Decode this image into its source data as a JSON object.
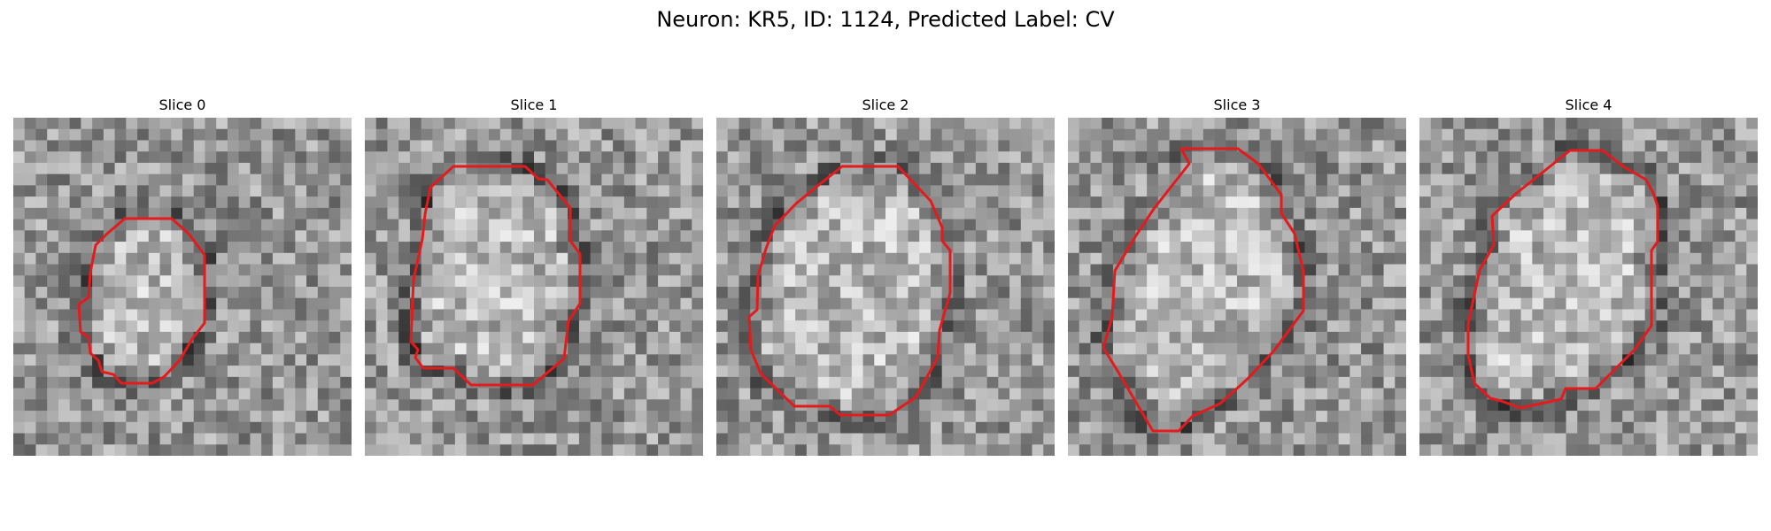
{
  "figure": {
    "title": "Neuron: KR5, ID: 1124, Predicted Label: CV"
  },
  "panels": [
    {
      "title": "Slice 0"
    },
    {
      "title": "Slice 1"
    },
    {
      "title": "Slice 2"
    },
    {
      "title": "Slice 3"
    },
    {
      "title": "Slice 4"
    }
  ],
  "colors": {
    "contour": "#e41a1c"
  }
}
